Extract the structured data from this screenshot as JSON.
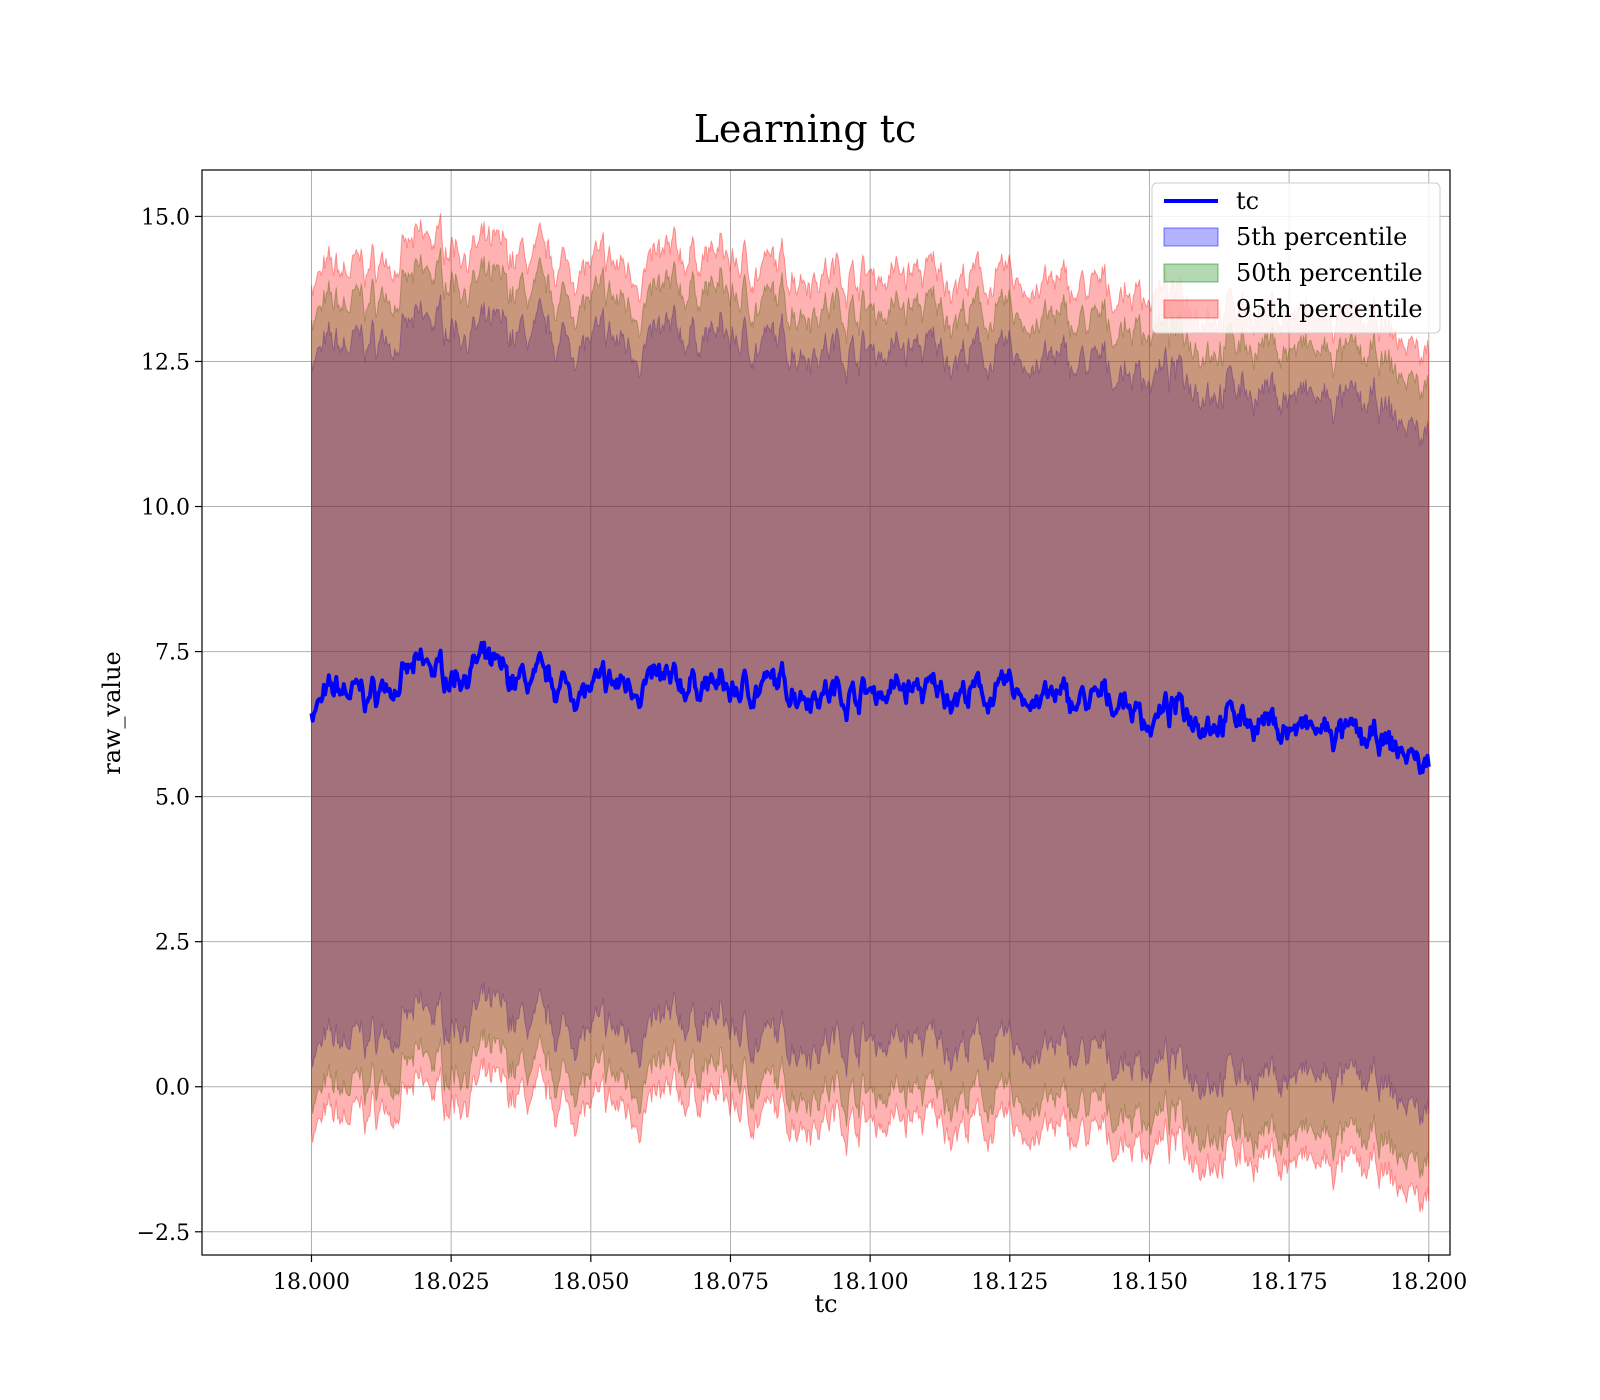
{
  "chart_data": {
    "type": "area",
    "title": "Learning tc",
    "xlabel": "tc",
    "ylabel": "raw_value",
    "xlim": [
      17.9804,
      18.2038
    ],
    "ylim": [
      -2.9,
      15.8
    ],
    "x_ticks": [
      "18.000",
      "18.025",
      "18.050",
      "18.075",
      "18.100",
      "18.125",
      "18.150",
      "18.175",
      "18.200"
    ],
    "y_ticks": [
      "−2.5",
      "0.0",
      "2.5",
      "5.0",
      "7.5",
      "10.0",
      "12.5",
      "15.0"
    ],
    "grid": true,
    "legend_position": "top-right",
    "line": {
      "name": "tc",
      "color": "#0000ff",
      "x": [
        18.0,
        18.005,
        18.01,
        18.015,
        18.02,
        18.025,
        18.03,
        18.035,
        18.04,
        18.045,
        18.05,
        18.055,
        18.06,
        18.065,
        18.07,
        18.075,
        18.08,
        18.085,
        18.09,
        18.095,
        18.1,
        18.105,
        18.11,
        18.115,
        18.12,
        18.125,
        18.13,
        18.135,
        18.14,
        18.145,
        18.15,
        18.155,
        18.16,
        18.165,
        18.17,
        18.175,
        18.18,
        18.185,
        18.19,
        18.195,
        18.2
      ],
      "y": [
        6.5,
        6.8,
        6.7,
        7.0,
        7.2,
        7.1,
        7.3,
        7.0,
        6.95,
        6.9,
        6.8,
        6.9,
        7.0,
        6.85,
        7.0,
        6.8,
        6.9,
        6.9,
        6.85,
        6.8,
        6.8,
        6.85,
        6.8,
        6.8,
        6.75,
        6.8,
        6.7,
        6.65,
        6.6,
        6.7,
        6.3,
        6.5,
        6.4,
        6.4,
        6.3,
        6.15,
        6.1,
        6.05,
        5.9,
        5.8,
        5.5
      ]
    },
    "bands": [
      {
        "name": "5th percentile",
        "color": "#0000ff",
        "opacity": 0.3,
        "x": [
          18.0,
          18.01,
          18.02,
          18.025,
          18.03,
          18.04,
          18.05,
          18.06,
          18.07,
          18.08,
          18.09,
          18.1,
          18.11,
          18.12,
          18.13,
          18.14,
          18.15,
          18.16,
          18.17,
          18.18,
          18.19,
          18.2
        ],
        "lower": [
          0.6,
          0.8,
          1.2,
          1.1,
          1.3,
          1.0,
          0.9,
          0.9,
          1.2,
          0.8,
          0.8,
          0.8,
          0.75,
          0.7,
          0.6,
          0.5,
          0.4,
          0.3,
          0.2,
          0.1,
          0.0,
          -0.5
        ],
        "upper": [
          12.6,
          12.8,
          13.1,
          13.2,
          13.0,
          12.9,
          12.8,
          12.8,
          13.0,
          12.8,
          12.8,
          12.7,
          12.7,
          12.6,
          12.5,
          12.4,
          12.3,
          12.2,
          12.0,
          11.8,
          11.7,
          11.2
        ]
      },
      {
        "name": "50th percentile",
        "color": "#008000",
        "opacity": 0.3,
        "x": [
          18.0,
          18.01,
          18.02,
          18.025,
          18.03,
          18.04,
          18.05,
          18.06,
          18.07,
          18.08,
          18.09,
          18.1,
          18.11,
          18.12,
          18.13,
          18.14,
          18.15,
          18.16,
          18.17,
          18.18,
          18.19,
          18.2
        ],
        "lower": [
          -0.2,
          0.0,
          0.4,
          0.3,
          0.5,
          0.2,
          0.1,
          0.1,
          0.4,
          0.0,
          0.0,
          -0.1,
          -0.1,
          -0.2,
          -0.3,
          -0.4,
          -0.5,
          -0.6,
          -0.8,
          -0.9,
          -1.0,
          -1.4
        ],
        "upper": [
          13.3,
          13.5,
          13.9,
          14.0,
          13.8,
          13.6,
          13.5,
          13.5,
          13.8,
          13.5,
          13.5,
          13.4,
          13.4,
          13.3,
          13.2,
          13.1,
          13.1,
          12.9,
          12.8,
          12.6,
          12.5,
          12.0
        ]
      },
      {
        "name": "95th percentile",
        "color": "#ff0000",
        "opacity": 0.3,
        "x": [
          18.0,
          18.01,
          18.02,
          18.025,
          18.03,
          18.04,
          18.05,
          18.06,
          18.07,
          18.08,
          18.09,
          18.1,
          18.11,
          18.12,
          18.13,
          18.14,
          18.15,
          18.16,
          18.17,
          18.18,
          18.19,
          18.2
        ],
        "lower": [
          -0.7,
          -0.5,
          -0.1,
          -0.2,
          0.0,
          -0.3,
          -0.4,
          -0.4,
          -0.1,
          -0.5,
          -0.5,
          -0.6,
          -0.6,
          -0.7,
          -0.8,
          -0.9,
          -1.0,
          -1.1,
          -1.2,
          -1.4,
          -1.5,
          -2.0
        ],
        "upper": [
          13.9,
          14.1,
          14.5,
          14.6,
          14.4,
          14.2,
          14.1,
          14.1,
          14.4,
          14.1,
          14.1,
          14.0,
          14.0,
          13.9,
          13.8,
          13.7,
          13.7,
          13.5,
          13.4,
          13.2,
          13.1,
          12.6
        ]
      }
    ]
  }
}
